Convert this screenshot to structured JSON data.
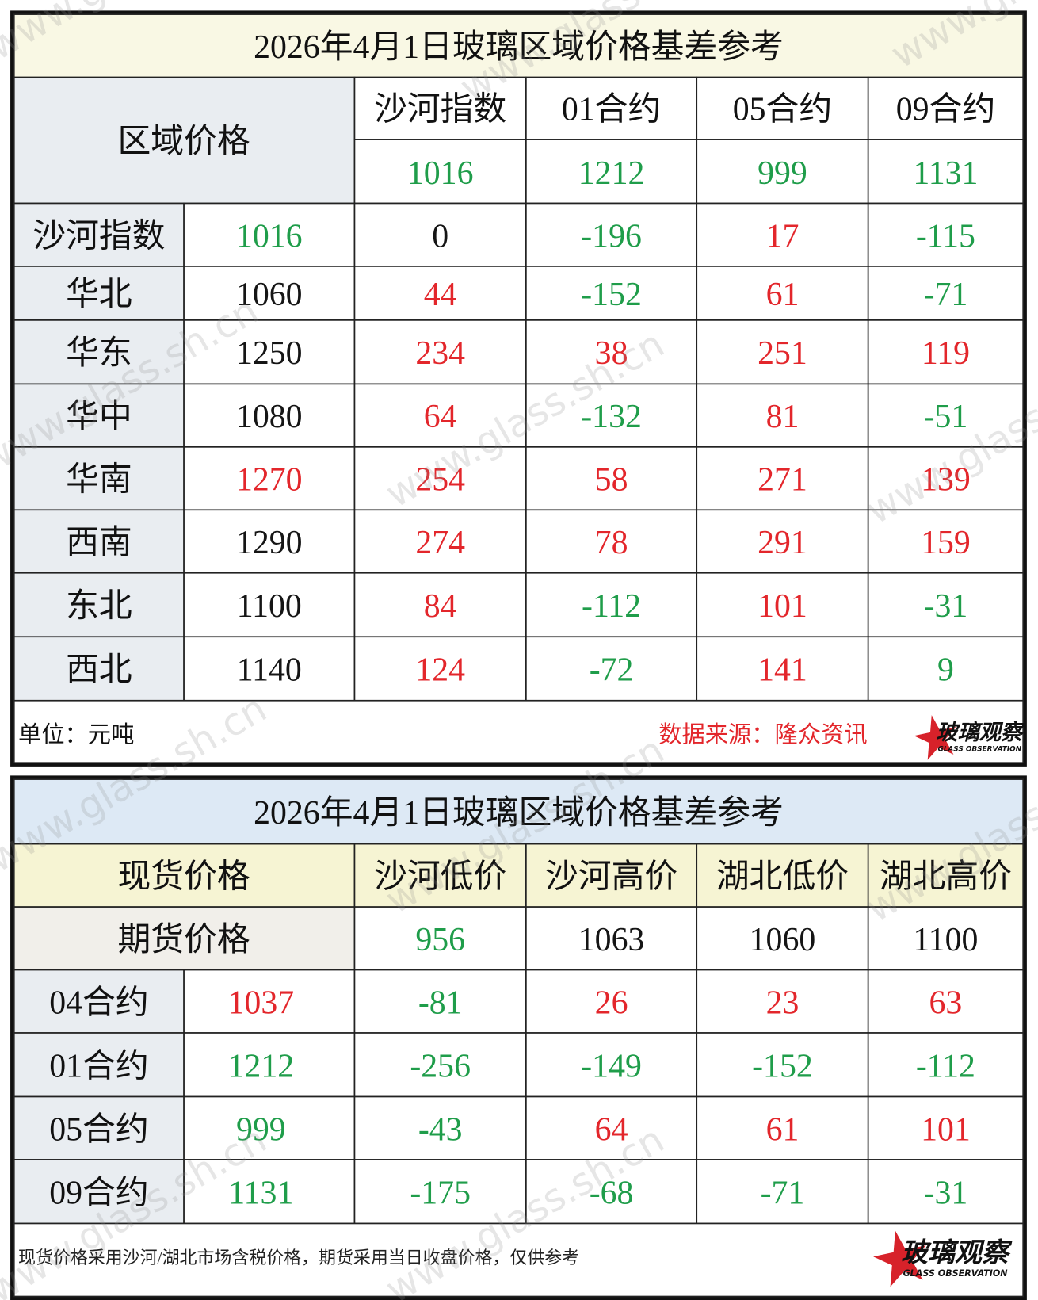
{
  "watermark": "www.glass.sh.cn",
  "palette": {
    "r": "#e3262b",
    "g": "#1f9d4a",
    "k": "#151515"
  },
  "logo": {
    "name": "玻璃观察",
    "subtitle": "GLASS OBSERVATION"
  },
  "table1": {
    "title": "2026年4月1日玻璃区域价格基差参考",
    "corner": "区域价格",
    "columns": [
      "沙河指数",
      "01合约",
      "05合约",
      "09合约"
    ],
    "column_values": [
      1016,
      1212,
      999,
      1131
    ],
    "column_value_colors": "gggg",
    "rows": [
      {
        "label": "沙河指数",
        "price": 1016,
        "price_color": "g",
        "values": [
          0,
          -196,
          17,
          -115
        ],
        "colors": "kgrg"
      },
      {
        "label": "华北",
        "price": 1060,
        "price_color": "k",
        "values": [
          44,
          -152,
          61,
          -71
        ],
        "colors": "rgrg"
      },
      {
        "label": "华东",
        "price": 1250,
        "price_color": "k",
        "values": [
          234,
          38,
          251,
          119
        ],
        "colors": "rrrr"
      },
      {
        "label": "华中",
        "price": 1080,
        "price_color": "k",
        "values": [
          64,
          -132,
          81,
          -51
        ],
        "colors": "rgrg"
      },
      {
        "label": "华南",
        "price": 1270,
        "price_color": "r",
        "values": [
          254,
          58,
          271,
          139
        ],
        "colors": "rrrr"
      },
      {
        "label": "西南",
        "price": 1290,
        "price_color": "k",
        "values": [
          274,
          78,
          291,
          159
        ],
        "colors": "rrrr"
      },
      {
        "label": "东北",
        "price": 1100,
        "price_color": "k",
        "values": [
          84,
          -112,
          101,
          -31
        ],
        "colors": "rgrg"
      },
      {
        "label": "西北",
        "price": 1140,
        "price_color": "k",
        "values": [
          124,
          -72,
          141,
          9
        ],
        "colors": "rgrg"
      }
    ],
    "unit": "单位：元吨",
    "source": "数据来源：隆众资讯"
  },
  "table2": {
    "title": "2026年4月1日玻璃区域价格基差参考",
    "corner": "现货价格",
    "columns": [
      "沙河低价",
      "沙河高价",
      "湖北低价",
      "湖北高价"
    ],
    "futures_label": "期货价格",
    "column_values": [
      956,
      1063,
      1060,
      1100
    ],
    "column_value_colors": "gkkk",
    "rows": [
      {
        "label": "04合约",
        "price": 1037,
        "price_color": "r",
        "values": [
          -81,
          26,
          23,
          63
        ],
        "colors": "grrr"
      },
      {
        "label": "01合约",
        "price": 1212,
        "price_color": "g",
        "values": [
          -256,
          -149,
          -152,
          -112
        ],
        "colors": "gggg"
      },
      {
        "label": "05合约",
        "price": 999,
        "price_color": "g",
        "values": [
          -43,
          64,
          61,
          101
        ],
        "colors": "grrr"
      },
      {
        "label": "09合约",
        "price": 1131,
        "price_color": "g",
        "values": [
          -175,
          -68,
          -71,
          -31
        ],
        "colors": "gggg"
      }
    ],
    "note": "现货价格采用沙河/湖北市场含税价格，期货采用当日收盘价格，仅供参考"
  }
}
